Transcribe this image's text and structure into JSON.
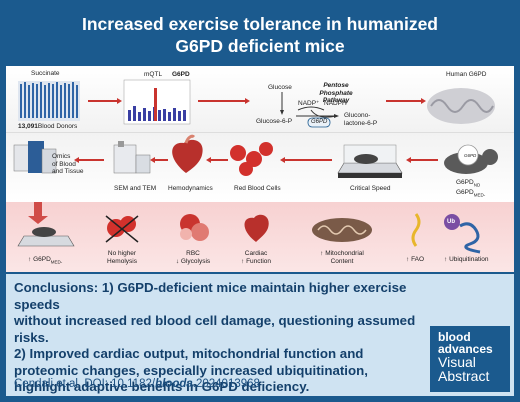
{
  "title": {
    "line1": "Increased exercise tolerance in humanized",
    "line2": "G6PD deficient mice"
  },
  "row1": {
    "succinate": "Succinate",
    "donors_count": "13,091",
    "donors_label": "Blood Donors",
    "mqtl": "mQTL",
    "g6pd_plot": "G6PD",
    "ppp_line1": "Pentose Phosphate",
    "ppp_line2": "Pathway",
    "glucose": "Glucose",
    "nadp": "NADP⁺",
    "nadph": "NADPH",
    "glucose6p": "Glucose-6-P",
    "g6pd_enzyme": "G6PD",
    "glucono_line1": "Glucono-",
    "glucono_line2": "lactone-6-P",
    "human_g6pd": "Human G6PD"
  },
  "row2": {
    "omics_line1": "Omics",
    "omics_line2": "of Blood",
    "omics_line3": "and Tissue",
    "sem_tem": "SEM and TEM",
    "hemodynamics": "Hemodynamics",
    "rbc": "Red Blood Cells",
    "critical_speed": "Critical Speed",
    "mouse_nd": "G6PD",
    "mouse_nd_sub": "ND",
    "mouse_med": "G6PD",
    "mouse_med_sub": "MED-",
    "mouse_tag": "G6PD"
  },
  "row3": {
    "g6pd_med": "G6PD",
    "g6pd_med_sub": "MED-",
    "hemolysis_line1": "No higher",
    "hemolysis_line2": "Hemolysis",
    "rbc_line1": "RBC",
    "rbc_line2": "Glycolysis",
    "cardiac_line1": "Cardiac",
    "cardiac_line2": "Function",
    "mito_line1": "Mitochondrial",
    "mito_line2": "Content",
    "fao": "FAO",
    "ub": "Ub",
    "ubiquitination": "Ubiquitination"
  },
  "conclusion": {
    "line1": "Conclusions: 1) G6PD-deficient mice maintain higher exercise speeds",
    "line2": "without increased red blood cell damage, questioning assumed risks.",
    "line3": "2) Improved cardiac output, mitochondrial function and",
    "line4": "proteomic changes, especially increased ubiquitination,",
    "line5": "highlight adaptive benefits in G6PD deficiency.",
    "citation_prefix": "Cendali et al. DOI: 10.1182/",
    "citation_em": "blooda",
    "citation_suffix": ".2024013968"
  },
  "badge": {
    "line1": "blood",
    "line2": "advances",
    "line3": "Visual",
    "line4": "Abstract"
  },
  "colors": {
    "brand_blue": "#1b5a8e",
    "accent_red": "#c9342f",
    "conclusion_bg": "#cfe3f2"
  }
}
